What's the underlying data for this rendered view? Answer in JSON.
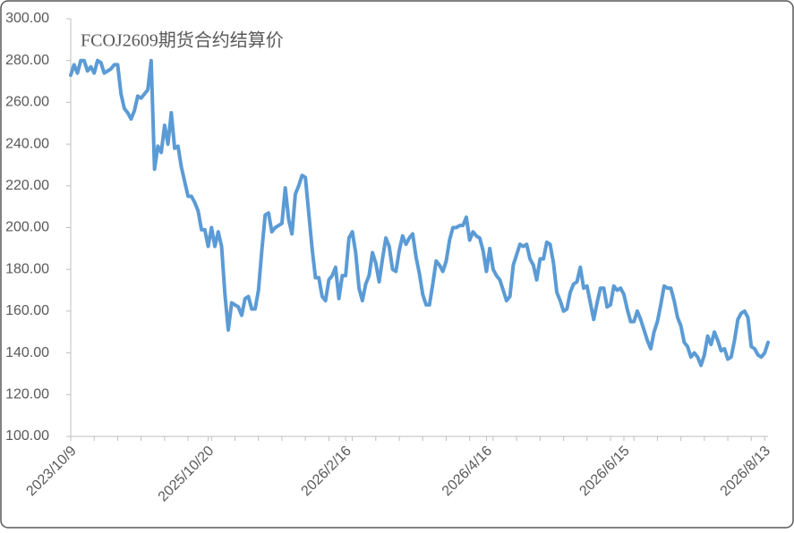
{
  "chart_data": {
    "type": "line",
    "title": "FCOJ2609期货合约结算价",
    "categories": [
      "2023/10/9",
      null,
      null,
      null,
      null,
      null,
      null,
      null,
      null,
      null,
      null,
      null,
      null,
      null,
      null,
      null,
      null,
      null,
      null,
      null,
      null,
      null,
      null,
      null,
      null,
      null,
      null,
      null,
      null,
      null,
      null,
      null,
      null,
      null,
      null,
      null,
      null,
      null,
      null,
      null,
      null,
      "2025/10/20",
      null,
      null,
      null,
      null,
      null,
      null,
      null,
      null,
      null,
      null,
      null,
      null,
      null,
      null,
      null,
      null,
      null,
      null,
      null,
      null,
      null,
      null,
      null,
      null,
      null,
      null,
      null,
      null,
      null,
      null,
      null,
      null,
      null,
      null,
      null,
      null,
      null,
      null,
      null,
      null,
      "2026/2/16",
      null,
      null,
      null,
      null,
      null,
      null,
      null,
      null,
      null,
      null,
      null,
      null,
      null,
      null,
      null,
      null,
      null,
      null,
      null,
      null,
      null,
      null,
      null,
      null,
      null,
      null,
      null,
      null,
      null,
      null,
      null,
      null,
      null,
      null,
      null,
      null,
      null,
      null,
      null,
      null,
      null,
      "2026/4/16",
      null,
      null,
      null,
      null,
      null,
      null,
      null,
      null,
      null,
      null,
      null,
      null,
      null,
      null,
      null,
      null,
      null,
      null,
      null,
      null,
      null,
      null,
      null,
      null,
      null,
      null,
      null,
      null,
      null,
      null,
      null,
      null,
      null,
      null,
      null,
      null,
      null,
      null,
      null,
      null,
      "2026/6/15",
      null,
      null,
      null,
      null,
      null,
      null,
      null,
      null,
      null,
      null,
      null,
      null,
      null,
      null,
      null,
      null,
      null,
      null,
      null,
      null,
      null,
      null,
      null,
      null,
      null,
      null,
      null,
      null,
      null,
      null,
      null,
      null,
      null,
      null,
      null,
      null,
      null,
      null,
      null,
      null,
      null,
      "2026/8/13",
      null
    ],
    "series": [
      {
        "name": "FCOJ2609",
        "color": "#5b9bd5",
        "values": [
          273,
          278,
          274,
          280,
          280,
          275,
          277,
          274,
          280,
          279,
          274,
          275,
          276,
          278,
          278,
          264,
          257,
          255,
          252,
          256,
          263,
          262,
          264,
          266,
          280,
          228,
          239,
          236,
          249,
          240,
          255,
          238,
          239,
          229,
          222,
          215,
          215,
          212,
          208,
          199,
          199,
          191,
          200,
          191,
          198,
          191,
          168,
          151,
          164,
          163,
          162,
          158,
          166,
          167,
          161,
          161,
          170,
          189,
          206,
          207,
          198,
          200,
          201,
          202,
          219,
          204,
          197,
          216,
          220,
          225,
          224,
          207,
          190,
          176,
          176,
          167,
          165,
          175,
          177,
          181,
          166,
          177,
          177,
          195,
          198,
          188,
          171,
          165,
          173,
          177,
          188,
          183,
          174,
          185,
          195,
          191,
          180,
          179,
          189,
          196,
          192,
          195,
          197,
          186,
          178,
          168,
          163,
          163,
          173,
          184,
          182,
          179,
          184,
          194,
          200,
          200,
          201,
          201,
          205,
          194,
          198,
          196,
          195,
          189,
          179,
          190,
          180,
          177,
          175,
          170,
          165,
          167,
          182,
          187,
          192,
          191,
          192,
          185,
          182,
          175,
          185,
          185,
          193,
          192,
          183,
          169,
          165,
          160,
          161,
          169,
          173,
          174,
          181,
          171,
          172,
          164,
          156,
          164,
          171,
          171,
          162,
          163,
          172,
          170,
          171,
          168,
          161,
          155,
          155,
          160,
          156,
          151,
          146,
          142,
          150,
          155,
          163,
          172,
          171,
          171,
          165,
          157,
          153,
          145,
          143,
          138,
          140,
          138,
          134,
          139,
          148,
          144,
          150,
          146,
          141,
          142,
          137,
          138,
          146,
          156,
          159,
          160,
          157,
          143,
          142,
          139,
          138,
          140,
          145
        ]
      }
    ],
    "ylim": [
      100,
      300
    ],
    "yticks": [
      {
        "value": 100,
        "label": "100.00"
      },
      {
        "value": 120,
        "label": "120.00"
      },
      {
        "value": 140,
        "label": "140.00"
      },
      {
        "value": 160,
        "label": "160.00"
      },
      {
        "value": 180,
        "label": "180.00"
      },
      {
        "value": 200,
        "label": "200.00"
      },
      {
        "value": 220,
        "label": "220.00"
      },
      {
        "value": 240,
        "label": "240.00"
      },
      {
        "value": 260,
        "label": "260.00"
      },
      {
        "value": 280,
        "label": "280.00"
      },
      {
        "value": 300,
        "label": "300.00"
      }
    ],
    "grid": false
  }
}
